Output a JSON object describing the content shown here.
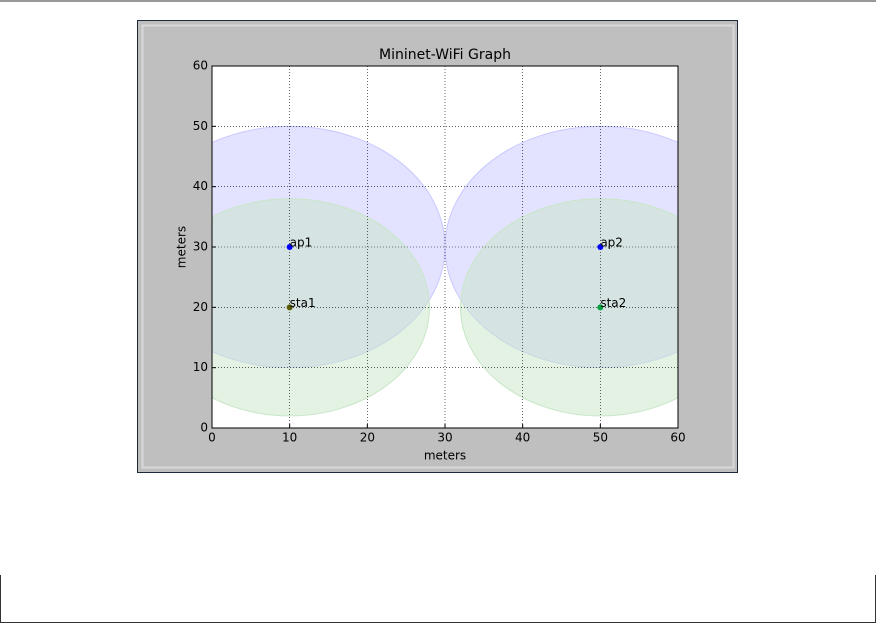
{
  "chart_data": {
    "type": "scatter",
    "title": "Mininet-WiFi Graph",
    "x_label": "meters",
    "y_label": "meters",
    "xlim": [
      0,
      60
    ],
    "ylim": [
      0,
      60
    ],
    "xticks": [
      0,
      10,
      20,
      30,
      40,
      50,
      60
    ],
    "yticks": [
      0,
      10,
      20,
      30,
      40,
      50,
      60
    ],
    "grid": true,
    "series": [
      {
        "name": "ap1",
        "color": "#0000ff",
        "x": [
          10
        ],
        "values": [
          30
        ],
        "range": 20,
        "range_color": "#c8c8ff"
      },
      {
        "name": "ap2",
        "color": "#0000ff",
        "x": [
          50
        ],
        "values": [
          30
        ],
        "range": 20,
        "range_color": "#c8c8ff"
      },
      {
        "name": "sta1",
        "color": "#5a5a00",
        "x": [
          10
        ],
        "values": [
          20
        ],
        "range": 18,
        "range_color": "#c8e6c8"
      },
      {
        "name": "sta2",
        "color": "#00a040",
        "x": [
          50
        ],
        "values": [
          20
        ],
        "range": 18,
        "range_color": "#c8e6c8"
      }
    ]
  }
}
